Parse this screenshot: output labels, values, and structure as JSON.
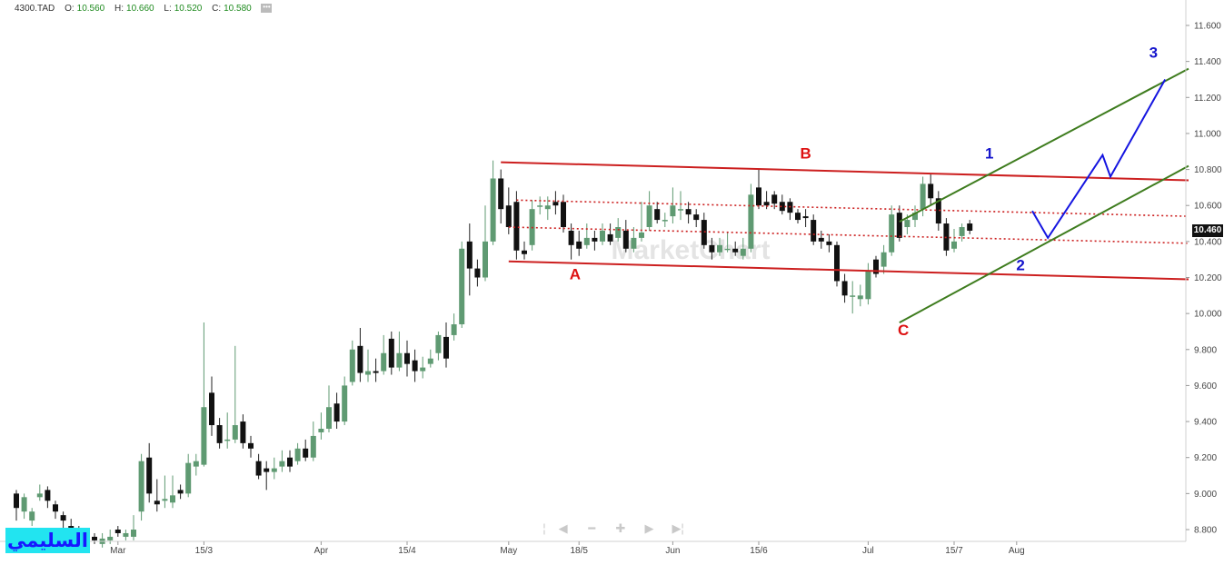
{
  "legend": {
    "symbol": "4300.TAD",
    "open_label": "O:",
    "open": "10.560",
    "high_label": "H:",
    "high": "10.660",
    "low_label": "L:",
    "low": "10.520",
    "close_label": "C:",
    "close": "10.580"
  },
  "last_price": "10.460",
  "watermark": "MarketChart",
  "signature": "السليمي",
  "chart_data": {
    "type": "candlestick",
    "ylim": [
      8.7,
      11.75
    ],
    "yticks": [
      "8.800",
      "9.000",
      "9.200",
      "9.400",
      "9.600",
      "9.800",
      "10.000",
      "10.200",
      "10.400",
      "10.600",
      "10.800",
      "11.000",
      "11.200",
      "11.400",
      "11.600"
    ],
    "xticks": [
      {
        "label": "Mar",
        "index": 13
      },
      {
        "label": "15/3",
        "index": 24
      },
      {
        "label": "Apr",
        "index": 39
      },
      {
        "label": "15/4",
        "index": 50
      },
      {
        "label": "May",
        "index": 63
      },
      {
        "label": "18/5",
        "index": 72
      },
      {
        "label": "Jun",
        "index": 84
      },
      {
        "label": "15/6",
        "index": 95
      },
      {
        "label": "Jul",
        "index": 109
      },
      {
        "label": "15/7",
        "index": 120
      },
      {
        "label": "Aug",
        "index": 128
      }
    ],
    "bar_spacing": 8.6,
    "first_bar_x": 18,
    "candles": [
      [
        9.0,
        8.92,
        9.02,
        8.85
      ],
      [
        8.9,
        8.98,
        9.0,
        8.86
      ],
      [
        8.85,
        8.9,
        8.92,
        8.82
      ],
      [
        8.98,
        9.0,
        9.05,
        8.96
      ],
      [
        9.02,
        8.96,
        9.04,
        8.92
      ],
      [
        8.94,
        8.9,
        8.96,
        8.86
      ],
      [
        8.88,
        8.85,
        8.9,
        8.8
      ],
      [
        8.82,
        8.8,
        8.86,
        8.78
      ],
      [
        8.8,
        8.76,
        8.82,
        8.74
      ],
      [
        8.76,
        8.78,
        8.8,
        8.74
      ],
      [
        8.76,
        8.74,
        8.78,
        8.72
      ],
      [
        8.72,
        8.75,
        8.78,
        8.7
      ],
      [
        8.74,
        8.76,
        8.8,
        8.72
      ],
      [
        8.8,
        8.78,
        8.82,
        8.76
      ],
      [
        8.76,
        8.78,
        8.8,
        8.74
      ],
      [
        8.76,
        8.8,
        8.88,
        8.74
      ],
      [
        8.9,
        9.18,
        9.22,
        8.85
      ],
      [
        9.2,
        9.0,
        9.28,
        8.95
      ],
      [
        8.96,
        8.94,
        9.08,
        8.9
      ],
      [
        8.96,
        8.97,
        9.1,
        8.92
      ],
      [
        8.95,
        8.99,
        9.1,
        8.92
      ],
      [
        9.02,
        9.0,
        9.05,
        8.97
      ],
      [
        9.0,
        9.17,
        9.22,
        8.98
      ],
      [
        9.15,
        9.18,
        9.22,
        9.1
      ],
      [
        9.16,
        9.48,
        9.95,
        9.15
      ],
      [
        9.56,
        9.38,
        9.65,
        9.32
      ],
      [
        9.38,
        9.28,
        9.42,
        9.25
      ],
      [
        9.3,
        9.3,
        9.45,
        9.25
      ],
      [
        9.3,
        9.38,
        9.82,
        9.28
      ],
      [
        9.4,
        9.28,
        9.44,
        9.25
      ],
      [
        9.28,
        9.25,
        9.32,
        9.2
      ],
      [
        9.18,
        9.1,
        9.22,
        9.08
      ],
      [
        9.14,
        9.12,
        9.18,
        9.02
      ],
      [
        9.12,
        9.14,
        9.2,
        9.08
      ],
      [
        9.15,
        9.18,
        9.24,
        9.12
      ],
      [
        9.2,
        9.15,
        9.24,
        9.12
      ],
      [
        9.18,
        9.25,
        9.28,
        9.16
      ],
      [
        9.25,
        9.2,
        9.3,
        9.18
      ],
      [
        9.2,
        9.32,
        9.4,
        9.18
      ],
      [
        9.34,
        9.36,
        9.45,
        9.3
      ],
      [
        9.36,
        9.48,
        9.6,
        9.34
      ],
      [
        9.5,
        9.4,
        9.56,
        9.36
      ],
      [
        9.4,
        9.6,
        9.65,
        9.38
      ],
      [
        9.62,
        9.8,
        9.85,
        9.6
      ],
      [
        9.82,
        9.67,
        9.92,
        9.62
      ],
      [
        9.66,
        9.68,
        9.8,
        9.62
      ],
      [
        9.68,
        9.67,
        9.75,
        9.62
      ],
      [
        9.68,
        9.78,
        9.88,
        9.66
      ],
      [
        9.86,
        9.7,
        9.9,
        9.66
      ],
      [
        9.7,
        9.78,
        9.9,
        9.68
      ],
      [
        9.78,
        9.72,
        9.85,
        9.65
      ],
      [
        9.74,
        9.68,
        9.8,
        9.62
      ],
      [
        9.68,
        9.7,
        9.76,
        9.64
      ],
      [
        9.72,
        9.75,
        9.8,
        9.7
      ],
      [
        9.78,
        9.88,
        9.9,
        9.74
      ],
      [
        9.87,
        9.75,
        9.95,
        9.7
      ],
      [
        9.88,
        9.94,
        10.0,
        9.85
      ],
      [
        9.94,
        10.36,
        10.4,
        9.92
      ],
      [
        10.4,
        10.25,
        10.5,
        10.1
      ],
      [
        10.25,
        10.2,
        10.3,
        10.15
      ],
      [
        10.2,
        10.4,
        10.6,
        10.18
      ],
      [
        10.4,
        10.75,
        10.85,
        10.38
      ],
      [
        10.75,
        10.58,
        10.8,
        10.5
      ],
      [
        10.6,
        10.48,
        10.7,
        10.44
      ],
      [
        10.62,
        10.35,
        10.68,
        10.3
      ],
      [
        10.35,
        10.33,
        10.4,
        10.3
      ],
      [
        10.38,
        10.58,
        10.63,
        10.35
      ],
      [
        10.6,
        10.6,
        10.65,
        10.55
      ],
      [
        10.58,
        10.6,
        10.65,
        10.52
      ],
      [
        10.62,
        10.6,
        10.68,
        10.55
      ],
      [
        10.62,
        10.48,
        10.66,
        10.45
      ],
      [
        10.46,
        10.38,
        10.5,
        10.3
      ],
      [
        10.4,
        10.36,
        10.46,
        10.32
      ],
      [
        10.38,
        10.42,
        10.5,
        10.36
      ],
      [
        10.42,
        10.4,
        10.46,
        10.35
      ],
      [
        10.4,
        10.46,
        10.5,
        10.38
      ],
      [
        10.44,
        10.4,
        10.5,
        10.38
      ],
      [
        10.42,
        10.48,
        10.53,
        10.4
      ],
      [
        10.46,
        10.36,
        10.52,
        10.34
      ],
      [
        10.36,
        10.42,
        10.48,
        10.34
      ],
      [
        10.42,
        10.45,
        10.62,
        10.4
      ],
      [
        10.48,
        10.6,
        10.68,
        10.46
      ],
      [
        10.58,
        10.52,
        10.62,
        10.5
      ],
      [
        10.52,
        10.52,
        10.56,
        10.48
      ],
      [
        10.54,
        10.6,
        10.7,
        10.5
      ],
      [
        10.58,
        10.58,
        10.68,
        10.52
      ],
      [
        10.58,
        10.55,
        10.62,
        10.5
      ],
      [
        10.55,
        10.52,
        10.58,
        10.48
      ],
      [
        10.52,
        10.38,
        10.56,
        10.36
      ],
      [
        10.38,
        10.34,
        10.42,
        10.3
      ],
      [
        10.34,
        10.38,
        10.42,
        10.32
      ],
      [
        10.36,
        10.36,
        10.45,
        10.34
      ],
      [
        10.36,
        10.34,
        10.4,
        10.32
      ],
      [
        10.32,
        10.36,
        10.42,
        10.3
      ],
      [
        10.36,
        10.66,
        10.72,
        10.34
      ],
      [
        10.7,
        10.6,
        10.8,
        10.58
      ],
      [
        10.62,
        10.6,
        10.68,
        10.58
      ],
      [
        10.66,
        10.61,
        10.68,
        10.58
      ],
      [
        10.62,
        10.57,
        10.66,
        10.55
      ],
      [
        10.62,
        10.56,
        10.64,
        10.52
      ],
      [
        10.56,
        10.52,
        10.58,
        10.5
      ],
      [
        10.54,
        10.53,
        10.58,
        10.48
      ],
      [
        10.52,
        10.4,
        10.55,
        10.38
      ],
      [
        10.42,
        10.4,
        10.46,
        10.36
      ],
      [
        10.4,
        10.38,
        10.44,
        10.34
      ],
      [
        10.38,
        10.18,
        10.4,
        10.15
      ],
      [
        10.18,
        10.1,
        10.22,
        10.06
      ],
      [
        10.1,
        10.1,
        10.18,
        10.0
      ],
      [
        10.08,
        10.1,
        10.16,
        10.04
      ],
      [
        10.08,
        10.24,
        10.28,
        10.05
      ],
      [
        10.3,
        10.22,
        10.32,
        10.2
      ],
      [
        10.26,
        10.34,
        10.38,
        10.22
      ],
      [
        10.34,
        10.55,
        10.6,
        10.32
      ],
      [
        10.56,
        10.42,
        10.6,
        10.4
      ],
      [
        10.48,
        10.52,
        10.55,
        10.44
      ],
      [
        10.52,
        10.56,
        10.6,
        10.48
      ],
      [
        10.58,
        10.72,
        10.76,
        10.54
      ],
      [
        10.72,
        10.64,
        10.78,
        10.6
      ],
      [
        10.64,
        10.5,
        10.68,
        10.46
      ],
      [
        10.5,
        10.35,
        10.53,
        10.32
      ],
      [
        10.36,
        10.4,
        10.47,
        10.34
      ],
      [
        10.43,
        10.48,
        10.5,
        10.4
      ],
      [
        10.5,
        10.46,
        10.52,
        10.44
      ]
    ],
    "candle_index_offset": 0,
    "lines": [
      {
        "name": "red-upper-channel",
        "color": "#cc1f1f",
        "style": "solid",
        "points": [
          [
            62,
            10.84
          ],
          [
            150,
            10.74
          ]
        ]
      },
      {
        "name": "red-lower-channel",
        "color": "#cc1f1f",
        "style": "solid",
        "points": [
          [
            63,
            10.29
          ],
          [
            150,
            10.19
          ]
        ]
      },
      {
        "name": "red-dotted-upper",
        "color": "#cc1f1f",
        "style": "dotted",
        "points": [
          [
            64,
            10.63
          ],
          [
            150,
            10.54
          ]
        ]
      },
      {
        "name": "red-dotted-lower",
        "color": "#cc1f1f",
        "style": "dotted",
        "points": [
          [
            63,
            10.48
          ],
          [
            150,
            10.39
          ]
        ]
      },
      {
        "name": "green-upper-channel",
        "color": "#3e7c1e",
        "style": "solid",
        "points": [
          [
            113,
            10.51
          ],
          [
            150,
            11.36
          ]
        ]
      },
      {
        "name": "green-lower-channel",
        "color": "#3e7c1e",
        "style": "solid",
        "points": [
          [
            113,
            9.95
          ],
          [
            150,
            10.82
          ]
        ]
      },
      {
        "name": "blue-projection",
        "color": "#1515e0",
        "style": "solid",
        "points": [
          [
            130,
            10.57
          ],
          [
            132,
            10.42
          ],
          [
            139,
            10.88
          ],
          [
            140,
            10.76
          ],
          [
            147,
            11.3
          ]
        ]
      }
    ],
    "annotations": [
      {
        "label": "A",
        "color": "#dd1111",
        "index": 71.5,
        "value": 10.19
      },
      {
        "label": "B",
        "color": "#dd1111",
        "index": 101,
        "value": 10.86
      },
      {
        "label": "C",
        "color": "#dd1111",
        "index": 113.5,
        "value": 9.88
      },
      {
        "label": "1",
        "color": "#1515cc",
        "index": 124.5,
        "value": 10.86
      },
      {
        "label": "2",
        "color": "#1515cc",
        "index": 128.5,
        "value": 10.24
      },
      {
        "label": "3",
        "color": "#1515cc",
        "index": 145.5,
        "value": 11.42
      }
    ]
  }
}
